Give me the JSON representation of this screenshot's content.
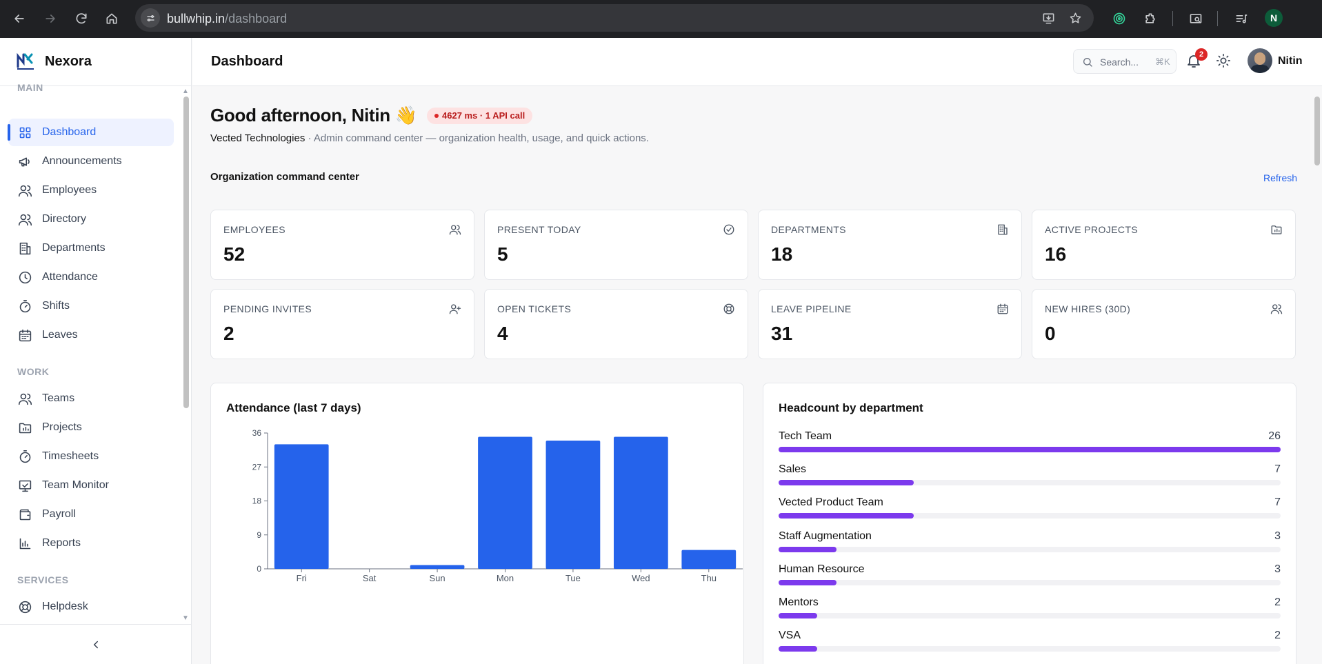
{
  "browser": {
    "url_host": "bullwhip.in",
    "url_path": "/dashboard",
    "profile_initial": "N"
  },
  "brand": {
    "name": "Nexora"
  },
  "sidebar": {
    "sections": [
      {
        "label": "MAIN",
        "items": [
          {
            "label": "Dashboard",
            "icon": "layout-grid-icon",
            "active": true
          },
          {
            "label": "Announcements",
            "icon": "megaphone-icon"
          },
          {
            "label": "Employees",
            "icon": "users-icon"
          },
          {
            "label": "Directory",
            "icon": "users-icon"
          },
          {
            "label": "Departments",
            "icon": "building-icon"
          },
          {
            "label": "Attendance",
            "icon": "clock-icon"
          },
          {
            "label": "Shifts",
            "icon": "timer-icon"
          },
          {
            "label": "Leaves",
            "icon": "calendar-icon"
          }
        ]
      },
      {
        "label": "WORK",
        "items": [
          {
            "label": "Teams",
            "icon": "users-icon"
          },
          {
            "label": "Projects",
            "icon": "folder-chart-icon"
          },
          {
            "label": "Timesheets",
            "icon": "timer-icon"
          },
          {
            "label": "Team Monitor",
            "icon": "monitor-icon"
          },
          {
            "label": "Payroll",
            "icon": "wallet-icon"
          },
          {
            "label": "Reports",
            "icon": "bar-chart-icon"
          }
        ]
      },
      {
        "label": "SERVICES",
        "items": [
          {
            "label": "Helpdesk",
            "icon": "life-buoy-icon"
          }
        ]
      }
    ]
  },
  "header": {
    "title": "Dashboard",
    "search_placeholder": "Search...",
    "search_shortcut": "⌘K",
    "notification_count": "2",
    "user_name": "Nitin"
  },
  "main": {
    "greeting": "Good afternoon, Nitin 👋",
    "perf_badge": "4627 ms · 1 API call",
    "org_name": "Vected Technologies",
    "subtitle": " · Admin command center — organization health, usage, and quick actions.",
    "section_title": "Organization command center",
    "refresh_label": "Refresh",
    "stats": [
      {
        "label": "EMPLOYEES",
        "value": "52",
        "icon": "users-icon"
      },
      {
        "label": "PRESENT TODAY",
        "value": "5",
        "icon": "check-circle-icon"
      },
      {
        "label": "DEPARTMENTS",
        "value": "18",
        "icon": "building-icon"
      },
      {
        "label": "ACTIVE PROJECTS",
        "value": "16",
        "icon": "folder-chart-icon"
      },
      {
        "label": "PENDING INVITES",
        "value": "2",
        "icon": "user-plus-icon"
      },
      {
        "label": "OPEN TICKETS",
        "value": "4",
        "icon": "life-buoy-icon"
      },
      {
        "label": "LEAVE PIPELINE",
        "value": "31",
        "icon": "calendar-icon"
      },
      {
        "label": "NEW HIRES (30D)",
        "value": "0",
        "icon": "users-icon"
      }
    ],
    "attendance_title": "Attendance (last 7 days)",
    "headcount_title": "Headcount by department"
  },
  "chart_data": [
    {
      "type": "bar",
      "title": "Attendance (last 7 days)",
      "categories": [
        "Fri",
        "Sat",
        "Sun",
        "Mon",
        "Tue",
        "Wed",
        "Thu"
      ],
      "values": [
        33,
        0,
        1,
        35,
        34,
        35,
        5
      ],
      "ylim": [
        0,
        36
      ],
      "yticks": [
        0,
        9,
        18,
        27,
        36
      ],
      "color": "#2563eb"
    },
    {
      "type": "bar",
      "title": "Headcount by department",
      "orientation": "horizontal",
      "categories": [
        "Tech Team",
        "Sales",
        "Vected Product Team",
        "Staff Augmentation",
        "Human Resource",
        "Mentors",
        "VSA"
      ],
      "values": [
        26,
        7,
        7,
        3,
        3,
        2,
        2
      ],
      "max": 26,
      "color": "#7c3aed"
    }
  ]
}
